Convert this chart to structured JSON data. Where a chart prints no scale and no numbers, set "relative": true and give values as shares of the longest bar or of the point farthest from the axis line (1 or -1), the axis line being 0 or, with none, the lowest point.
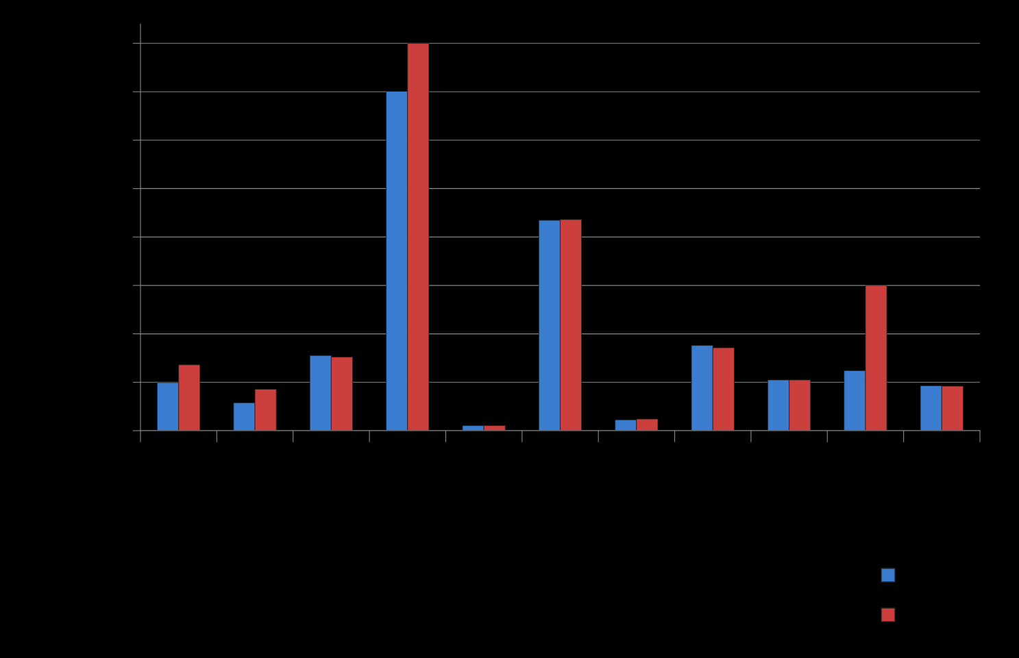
{
  "chart_data": {
    "type": "bar",
    "relative": true,
    "categories": [
      null,
      null,
      null,
      null,
      null,
      null,
      null,
      null,
      null,
      null,
      null
    ],
    "series": [
      {
        "color": "#3b7dd0",
        "values": [
          0.124,
          0.072,
          0.194,
          0.876,
          0.013,
          0.543,
          0.028,
          0.22,
          0.131,
          0.155,
          0.116
        ]
      },
      {
        "color": "#cc3f3c",
        "values": [
          0.17,
          0.107,
          0.19,
          1,
          0.013,
          0.545,
          0.03,
          0.214,
          0.131,
          0.375,
          0.115
        ]
      }
    ],
    "grid": "y"
  }
}
